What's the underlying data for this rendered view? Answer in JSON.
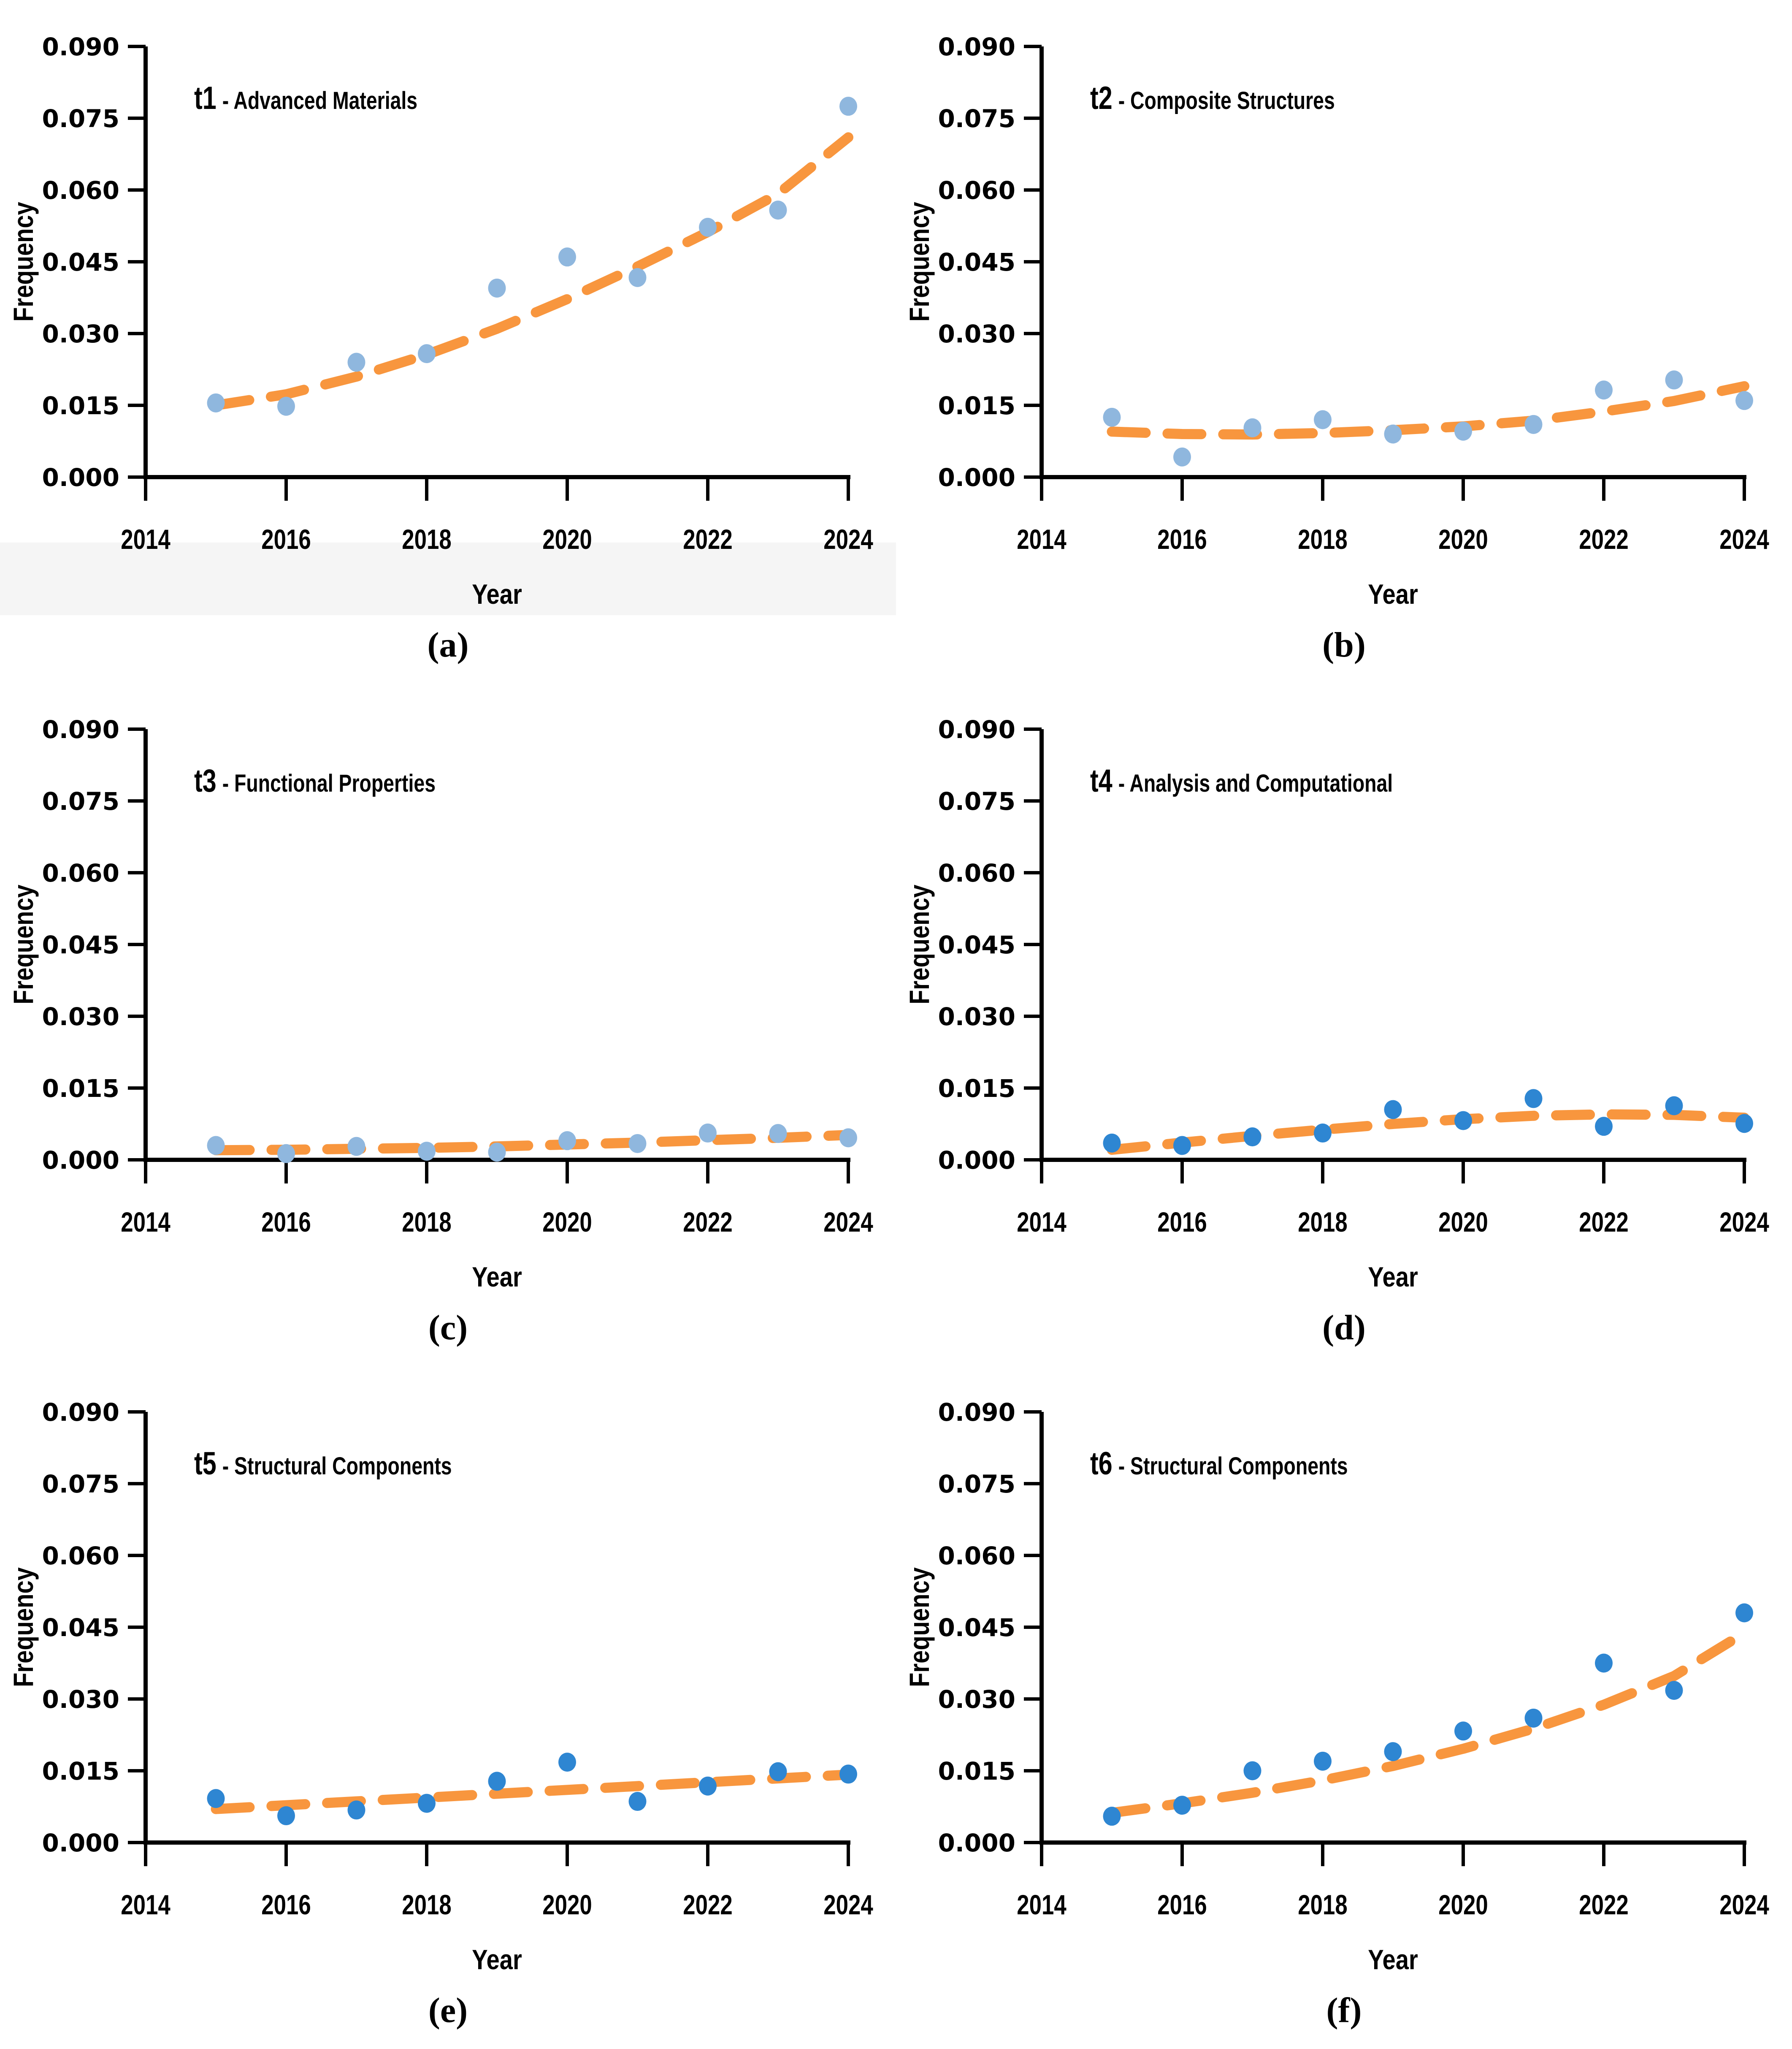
{
  "figure": {
    "x_axis_label": "Year",
    "y_axis_label": "Frequency",
    "x_ticks": [
      "2014",
      "2016",
      "2018",
      "2020",
      "2022",
      "2024"
    ],
    "y_ticks": [
      "0.000",
      "0.015",
      "0.030",
      "0.045",
      "0.060",
      "0.075",
      "0.090"
    ],
    "colors": {
      "light_blue_marker": "#8FB7DE",
      "dark_blue_marker": "#2E86D2",
      "trend_orange": "#F8963E",
      "axis_black": "#000000",
      "band_gray": "#f5f5f5"
    }
  },
  "chart_data": [
    {
      "type": "scatter",
      "title_prefix": "t1",
      "title_rest": " - Advanced Materials",
      "caption": "(a)",
      "xlabel": "Year",
      "ylabel": "Frequency",
      "xlim": [
        2014,
        2024
      ],
      "ylim": [
        0,
        0.09
      ],
      "y_tick_step": 0.015,
      "x_tick_step": 2,
      "x": [
        2015,
        2016,
        2017,
        2018,
        2019,
        2020,
        2021,
        2022,
        2023,
        2024
      ],
      "values": [
        0.0155,
        0.0148,
        0.024,
        0.0258,
        0.0395,
        0.046,
        0.0417,
        0.0522,
        0.0558,
        0.0775
      ],
      "trend": [
        0.015,
        0.0173,
        0.021,
        0.0256,
        0.031,
        0.0372,
        0.044,
        0.0512,
        0.0592,
        0.071
      ],
      "marker_color": "#8FB7DE",
      "trend_color": "#F8963E",
      "gray_band": true
    },
    {
      "type": "scatter",
      "title_prefix": "t2",
      "title_rest": " - Composite Structures",
      "caption": "(b)",
      "xlabel": "Year",
      "ylabel": "Frequency",
      "xlim": [
        2014,
        2024
      ],
      "ylim": [
        0,
        0.09
      ],
      "y_tick_step": 0.015,
      "x_tick_step": 2,
      "x": [
        2015,
        2016,
        2017,
        2018,
        2019,
        2020,
        2021,
        2022,
        2023,
        2024
      ],
      "values": [
        0.0125,
        0.0042,
        0.0103,
        0.012,
        0.009,
        0.0096,
        0.011,
        0.0182,
        0.0203,
        0.016
      ],
      "trend": [
        0.0095,
        0.009,
        0.0089,
        0.0092,
        0.0098,
        0.0106,
        0.0118,
        0.0137,
        0.0159,
        0.019
      ],
      "marker_color": "#8FB7DE",
      "trend_color": "#F8963E",
      "gray_band": false
    },
    {
      "type": "scatter",
      "title_prefix": "t3",
      "title_rest": " - Functional Properties",
      "caption": "(c)",
      "xlabel": "Year",
      "ylabel": "Frequency",
      "xlim": [
        2014,
        2024
      ],
      "ylim": [
        0,
        0.09
      ],
      "y_tick_step": 0.015,
      "x_tick_step": 2,
      "x": [
        2015,
        2016,
        2017,
        2018,
        2019,
        2020,
        2021,
        2022,
        2023,
        2024
      ],
      "values": [
        0.003,
        0.0013,
        0.0028,
        0.0018,
        0.0016,
        0.004,
        0.0034,
        0.0056,
        0.0055,
        0.0046
      ],
      "trend": [
        0.002,
        0.0021,
        0.0023,
        0.0025,
        0.0028,
        0.0032,
        0.0036,
        0.0041,
        0.0046,
        0.0052
      ],
      "marker_color": "#8FB7DE",
      "trend_color": "#F8963E",
      "gray_band": false
    },
    {
      "type": "scatter",
      "title_prefix": "t4",
      "title_rest": " - Analysis and Computational",
      "caption": "(d)",
      "xlabel": "Year",
      "ylabel": "Frequency",
      "xlim": [
        2014,
        2024
      ],
      "ylim": [
        0,
        0.09
      ],
      "y_tick_step": 0.015,
      "x_tick_step": 2,
      "x": [
        2015,
        2016,
        2017,
        2018,
        2019,
        2020,
        2021,
        2022,
        2023,
        2024
      ],
      "values": [
        0.0035,
        0.003,
        0.0048,
        0.0056,
        0.0105,
        0.0082,
        0.0128,
        0.007,
        0.0113,
        0.0076
      ],
      "trend": [
        0.0021,
        0.0036,
        0.005,
        0.0063,
        0.0075,
        0.0085,
        0.0092,
        0.0095,
        0.0094,
        0.0088
      ],
      "marker_color": "#2E86D2",
      "trend_color": "#F8963E",
      "gray_band": false
    },
    {
      "type": "scatter",
      "title_prefix": "t5",
      "title_rest": " - Structural Components",
      "caption": "(e)",
      "xlabel": "Year",
      "ylabel": "Frequency",
      "xlim": [
        2014,
        2024
      ],
      "ylim": [
        0,
        0.09
      ],
      "y_tick_step": 0.015,
      "x_tick_step": 2,
      "x": [
        2015,
        2016,
        2017,
        2018,
        2019,
        2020,
        2021,
        2022,
        2023,
        2024
      ],
      "values": [
        0.0092,
        0.0056,
        0.0068,
        0.0082,
        0.0128,
        0.0168,
        0.0086,
        0.0118,
        0.0148,
        0.0143
      ],
      "trend": [
        0.007,
        0.0078,
        0.0086,
        0.0094,
        0.0102,
        0.011,
        0.0118,
        0.0126,
        0.0134,
        0.0142
      ],
      "marker_color": "#2E86D2",
      "trend_color": "#F8963E",
      "gray_band": false
    },
    {
      "type": "scatter",
      "title_prefix": "t6",
      "title_rest": " - Structural Components",
      "caption": "(f)",
      "xlabel": "Year",
      "ylabel": "Frequency",
      "xlim": [
        2014,
        2024
      ],
      "ylim": [
        0,
        0.09
      ],
      "y_tick_step": 0.015,
      "x_tick_step": 2,
      "x": [
        2015,
        2016,
        2017,
        2018,
        2019,
        2020,
        2021,
        2022,
        2023,
        2024
      ],
      "values": [
        0.0055,
        0.0078,
        0.015,
        0.017,
        0.019,
        0.0233,
        0.026,
        0.0375,
        0.0318,
        0.048
      ],
      "trend": [
        0.0062,
        0.0082,
        0.0104,
        0.013,
        0.016,
        0.0196,
        0.0238,
        0.0288,
        0.0348,
        0.0438
      ],
      "marker_color": "#2E86D2",
      "trend_color": "#F8963E",
      "gray_band": false
    }
  ]
}
